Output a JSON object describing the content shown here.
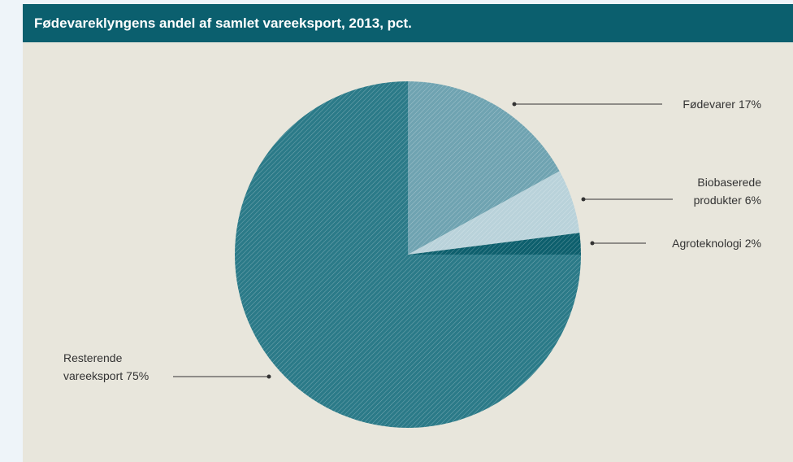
{
  "chart_data": {
    "type": "pie",
    "title": "Fødevareklyngens andel af samlet vareeksport, 2013, pct.",
    "categories": [
      "Fødevarer",
      "Biobaserede produkter",
      "Agroteknologi",
      "Resterende vareeksport"
    ],
    "values": [
      17,
      6,
      2,
      75
    ],
    "value_labels": [
      "17%",
      "6%",
      "2%",
      "75%"
    ],
    "colors": [
      "#6fa3b1",
      "#b9d2da",
      "#0d5f6d",
      "#2b7a88"
    ]
  }
}
